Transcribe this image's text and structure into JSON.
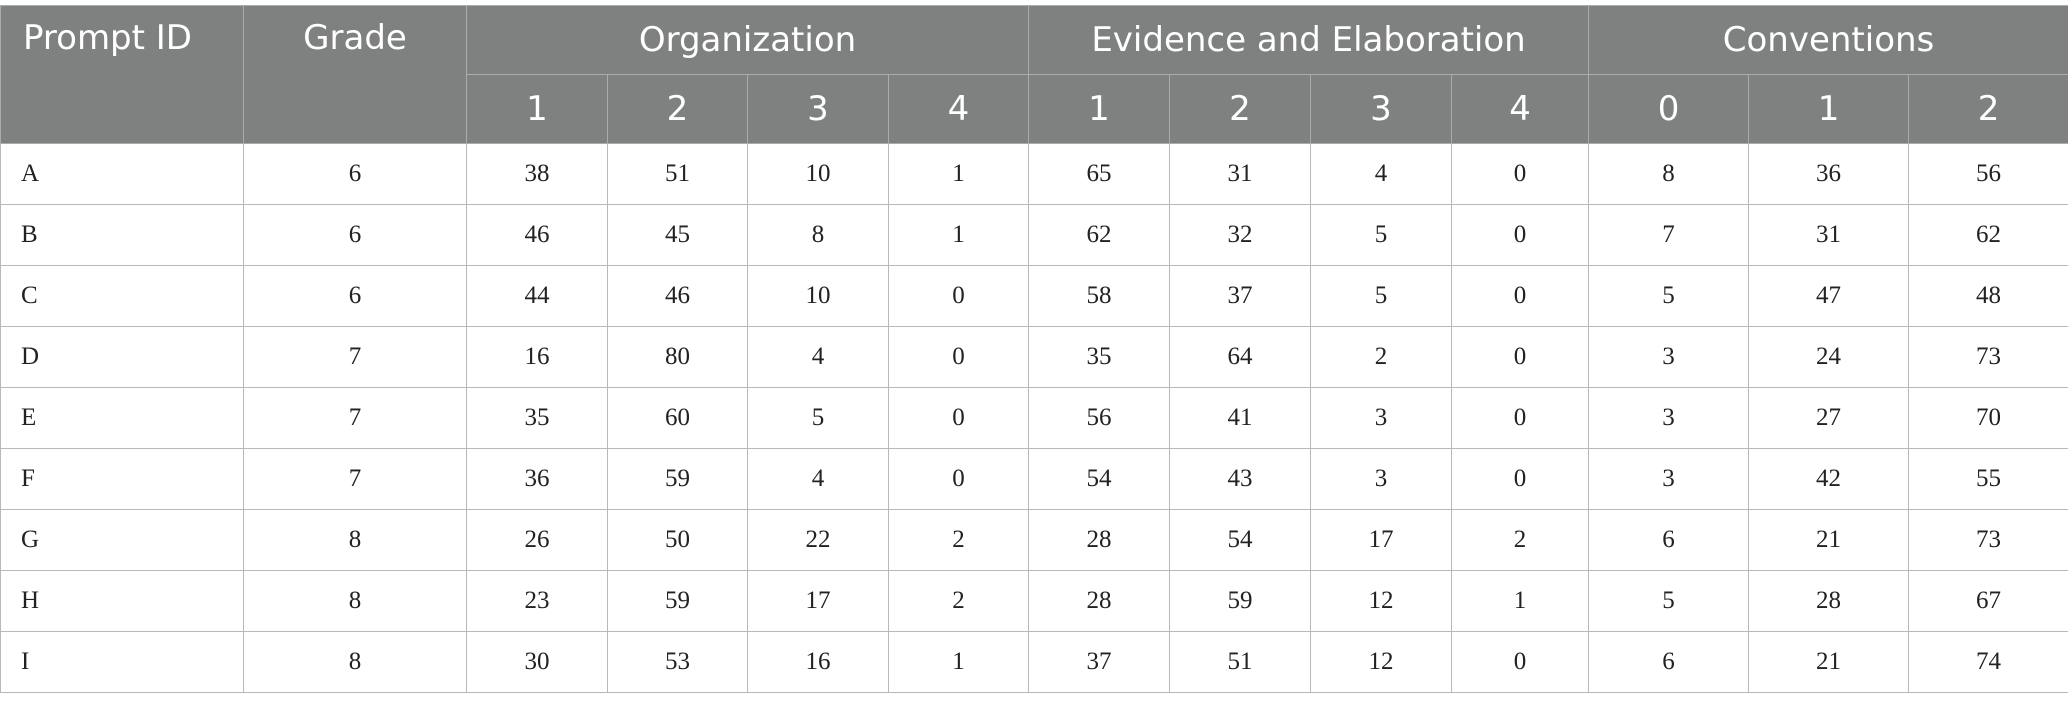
{
  "headers": {
    "prompt_id": "Prompt ID",
    "grade": "Grade",
    "groups": [
      {
        "label": "Organization",
        "subs": [
          "1",
          "2",
          "3",
          "4"
        ]
      },
      {
        "label": "Evidence and Elaboration",
        "subs": [
          "1",
          "2",
          "3",
          "4"
        ]
      },
      {
        "label": "Conventions",
        "subs": [
          "0",
          "1",
          "2"
        ]
      }
    ]
  },
  "rows": [
    {
      "prompt": "A",
      "grade": "6",
      "organization": [
        "38",
        "51",
        "10",
        "1"
      ],
      "evidence": [
        "65",
        "31",
        "4",
        "0"
      ],
      "conventions": [
        "8",
        "36",
        "56"
      ]
    },
    {
      "prompt": "B",
      "grade": "6",
      "organization": [
        "46",
        "45",
        "8",
        "1"
      ],
      "evidence": [
        "62",
        "32",
        "5",
        "0"
      ],
      "conventions": [
        "7",
        "31",
        "62"
      ]
    },
    {
      "prompt": "C",
      "grade": "6",
      "organization": [
        "44",
        "46",
        "10",
        "0"
      ],
      "evidence": [
        "58",
        "37",
        "5",
        "0"
      ],
      "conventions": [
        "5",
        "47",
        "48"
      ]
    },
    {
      "prompt": "D",
      "grade": "7",
      "organization": [
        "16",
        "80",
        "4",
        "0"
      ],
      "evidence": [
        "35",
        "64",
        "2",
        "0"
      ],
      "conventions": [
        "3",
        "24",
        "73"
      ]
    },
    {
      "prompt": "E",
      "grade": "7",
      "organization": [
        "35",
        "60",
        "5",
        "0"
      ],
      "evidence": [
        "56",
        "41",
        "3",
        "0"
      ],
      "conventions": [
        "3",
        "27",
        "70"
      ]
    },
    {
      "prompt": "F",
      "grade": "7",
      "organization": [
        "36",
        "59",
        "4",
        "0"
      ],
      "evidence": [
        "54",
        "43",
        "3",
        "0"
      ],
      "conventions": [
        "3",
        "42",
        "55"
      ]
    },
    {
      "prompt": "G",
      "grade": "8",
      "organization": [
        "26",
        "50",
        "22",
        "2"
      ],
      "evidence": [
        "28",
        "54",
        "17",
        "2"
      ],
      "conventions": [
        "6",
        "21",
        "73"
      ]
    },
    {
      "prompt": "H",
      "grade": "8",
      "organization": [
        "23",
        "59",
        "17",
        "2"
      ],
      "evidence": [
        "28",
        "59",
        "12",
        "1"
      ],
      "conventions": [
        "5",
        "28",
        "67"
      ]
    },
    {
      "prompt": "I",
      "grade": "8",
      "organization": [
        "30",
        "53",
        "16",
        "1"
      ],
      "evidence": [
        "37",
        "51",
        "12",
        "0"
      ],
      "conventions": [
        "6",
        "21",
        "74"
      ]
    }
  ]
}
